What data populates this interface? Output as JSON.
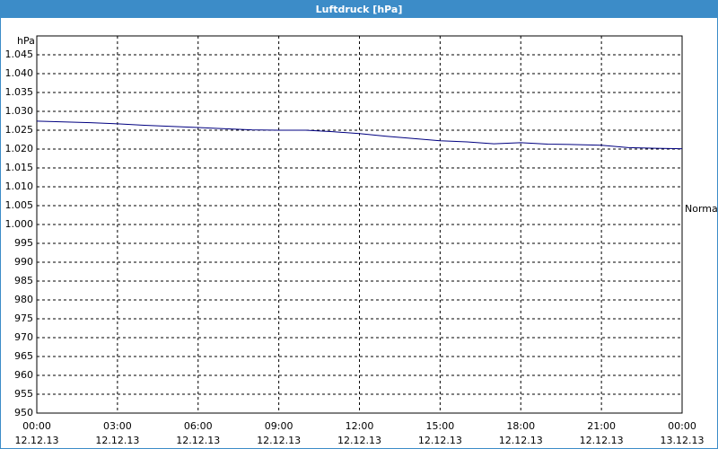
{
  "chart_data": {
    "type": "line",
    "title": "Luftdruck [hPa]",
    "y_label": "hPa",
    "x": [
      0,
      1,
      2,
      3,
      4,
      5,
      6,
      7,
      8,
      9,
      10,
      11,
      12,
      13,
      14,
      15,
      16,
      17,
      18,
      19,
      20,
      21,
      22,
      23,
      24
    ],
    "series": [
      {
        "name": "Luftdruck",
        "color": "#000080",
        "values": [
          1027.4,
          1027.2,
          1027,
          1026.7,
          1026.3,
          1026,
          1025.7,
          1025.4,
          1025.1,
          1025,
          1025,
          1024.6,
          1024.1,
          1023.4,
          1022.8,
          1022.2,
          1021.9,
          1021.4,
          1021.7,
          1021.3,
          1021.2,
          1021,
          1020.4,
          1020.2,
          1020.1
        ]
      }
    ],
    "xlim": [
      0,
      24
    ],
    "xticks": [
      {
        "value": 0,
        "label": "00:00"
      },
      {
        "value": 3,
        "label": "03:00"
      },
      {
        "value": 6,
        "label": "06:00"
      },
      {
        "value": 9,
        "label": "09:00"
      },
      {
        "value": 12,
        "label": "12:00"
      },
      {
        "value": 15,
        "label": "15:00"
      },
      {
        "value": 18,
        "label": "18:00"
      },
      {
        "value": 21,
        "label": "21:00"
      },
      {
        "value": 24,
        "label": "00:00"
      }
    ],
    "xtick_dates": [
      "12.12.13",
      "12.12.13",
      "12.12.13",
      "12.12.13",
      "12.12.13",
      "12.12.13",
      "12.12.13",
      "12.12.13",
      "13.12.13"
    ],
    "ylim": [
      950,
      1050
    ],
    "yticks": [
      950,
      955,
      960,
      965,
      970,
      975,
      980,
      985,
      990,
      995,
      {
        "value": 1000,
        "label": "1.000"
      },
      {
        "value": 1005,
        "label": "1.005"
      },
      {
        "value": 1010,
        "label": "1.010"
      },
      {
        "value": 1015,
        "label": "1.015"
      },
      {
        "value": 1020,
        "label": "1.020"
      },
      {
        "value": 1025,
        "label": "1.025"
      },
      {
        "value": 1030,
        "label": "1.030"
      },
      {
        "value": 1035,
        "label": "1.035"
      },
      {
        "value": 1040,
        "label": "1.040"
      },
      {
        "value": 1045,
        "label": "1.045"
      }
    ],
    "reference": {
      "label": "Normal",
      "value": 1004.3
    },
    "grid": true
  }
}
